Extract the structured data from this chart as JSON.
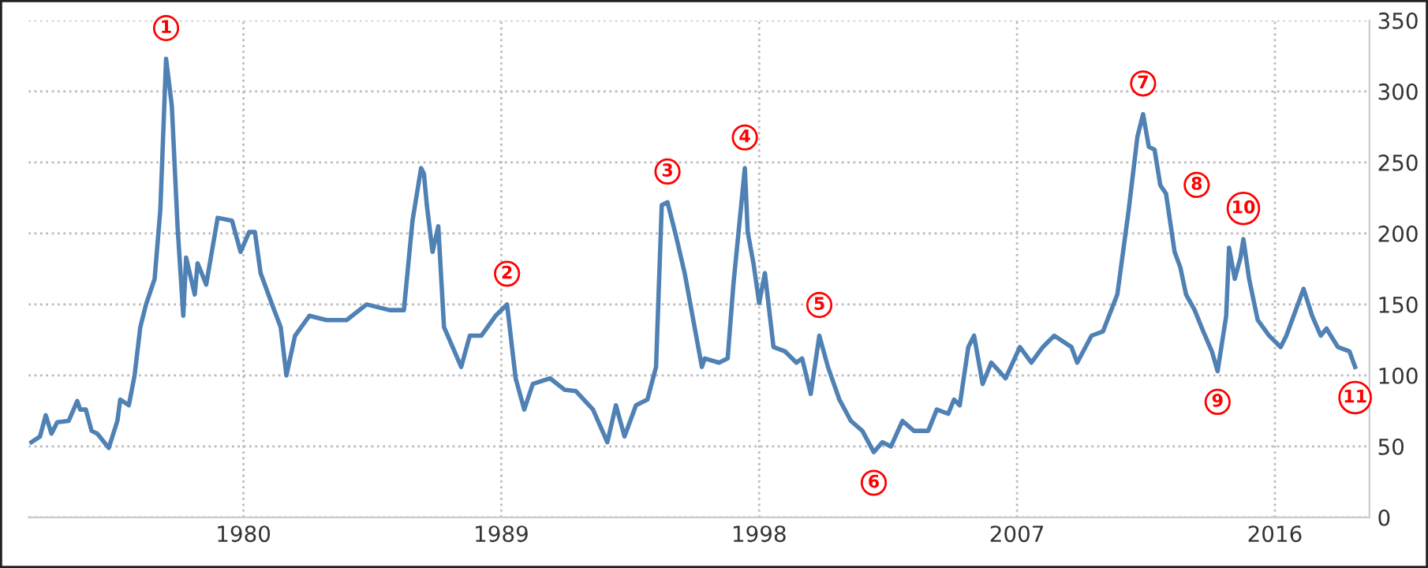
{
  "chart_data": {
    "type": "line",
    "xlim": [
      1972.5,
      2019.3
    ],
    "ylim": [
      0,
      350
    ],
    "xticks": [
      1980,
      1989,
      1998,
      2007,
      2016
    ],
    "yticks": [
      0,
      50,
      100,
      150,
      200,
      250,
      300,
      350
    ],
    "grid": true,
    "marker": "none",
    "line_style": "solid",
    "series": [
      {
        "color": "#4f81b4",
        "x": [
          1972.6,
          1972.9,
          1973.1,
          1973.3,
          1973.5,
          1973.9,
          1974.2,
          1974.3,
          1974.5,
          1974.7,
          1974.9,
          1975.3,
          1975.6,
          1975.7,
          1976.0,
          1976.2,
          1976.4,
          1976.6,
          1976.9,
          1977.1,
          1977.3,
          1977.5,
          1977.7,
          1977.9,
          1978.0,
          1978.3,
          1978.4,
          1978.7,
          1979.1,
          1979.6,
          1979.9,
          1980.2,
          1980.4,
          1980.6,
          1981.0,
          1981.3,
          1981.5,
          1981.8,
          1982.3,
          1982.9,
          1983.6,
          1984.3,
          1985.1,
          1985.6,
          1985.9,
          1986.2,
          1986.3,
          1986.4,
          1986.6,
          1986.8,
          1987.0,
          1987.3,
          1987.6,
          1987.9,
          1988.3,
          1988.8,
          1989.2,
          1989.5,
          1989.8,
          1990.1,
          1990.7,
          1991.2,
          1991.6,
          1992.2,
          1992.7,
          1993.0,
          1993.3,
          1993.7,
          1994.1,
          1994.4,
          1994.6,
          1994.8,
          1995.1,
          1995.4,
          1996.0,
          1996.1,
          1996.6,
          1996.9,
          1997.1,
          1997.5,
          1997.6,
          1997.8,
          1998.0,
          1998.2,
          1998.5,
          1998.9,
          1999.3,
          1999.5,
          1999.8,
          2000.1,
          2000.4,
          2000.8,
          2001.2,
          2001.6,
          2002.0,
          2002.3,
          2002.6,
          2003.0,
          2003.4,
          2003.9,
          2004.2,
          2004.6,
          2004.8,
          2005.0,
          2005.3,
          2005.5,
          2005.8,
          2006.1,
          2006.6,
          2007.1,
          2007.5,
          2007.9,
          2008.3,
          2008.9,
          2009.1,
          2009.6,
          2010.0,
          2010.5,
          2010.9,
          2011.2,
          2011.4,
          2011.6,
          2011.8,
          2012.0,
          2012.2,
          2012.5,
          2012.7,
          2012.9,
          2013.2,
          2013.5,
          2013.8,
          2014.0,
          2014.3,
          2014.4,
          2014.6,
          2014.8,
          2014.9,
          2015.1,
          2015.4,
          2015.8,
          2016.2,
          2016.4,
          2016.8,
          2017.0,
          2017.3,
          2017.6,
          2017.8,
          2018.2,
          2018.6,
          2018.8
        ],
        "values": [
          53,
          57,
          72,
          59,
          67,
          68,
          82,
          76,
          76,
          61,
          59,
          49,
          68,
          83,
          79,
          100,
          134,
          150,
          168,
          217,
          323,
          290,
          205,
          142,
          183,
          157,
          179,
          164,
          211,
          209,
          187,
          201,
          201,
          172,
          150,
          134,
          100,
          128,
          142,
          139,
          139,
          150,
          146,
          146,
          209,
          246,
          242,
          220,
          187,
          205,
          134,
          120,
          106,
          128,
          128,
          142,
          150,
          98,
          76,
          94,
          98,
          90,
          89,
          76,
          53,
          79,
          57,
          79,
          83,
          106,
          220,
          222,
          198,
          172,
          106,
          112,
          109,
          112,
          164,
          246,
          201,
          179,
          151,
          172,
          120,
          117,
          109,
          112,
          87,
          128,
          106,
          83,
          68,
          61,
          46,
          53,
          50,
          68,
          61,
          61,
          76,
          73,
          83,
          79,
          120,
          128,
          94,
          109,
          98,
          120,
          109,
          120,
          128,
          120,
          109,
          128,
          131,
          157,
          217,
          268,
          284,
          261,
          259,
          234,
          228,
          187,
          176,
          157,
          146,
          131,
          117,
          103,
          142,
          190,
          168,
          183,
          196,
          168,
          139,
          128,
          120,
          128,
          150,
          161,
          142,
          128,
          133,
          120,
          117,
          106
        ]
      }
    ],
    "annotations": [
      {
        "text": "1",
        "x": 1977.3,
        "y": 323
      },
      {
        "text": "2",
        "x": 1989.2,
        "y": 150
      },
      {
        "text": "3",
        "x": 1994.8,
        "y": 222
      },
      {
        "text": "4",
        "x": 1997.5,
        "y": 246
      },
      {
        "text": "5",
        "x": 2000.1,
        "y": 128
      },
      {
        "text": "6",
        "x": 2002.0,
        "y": 46
      },
      {
        "text": "7",
        "x": 2011.4,
        "y": 284
      },
      {
        "text": "8",
        "x": 2012.2,
        "y": 228
      },
      {
        "text": "9",
        "x": 2014.0,
        "y": 103
      },
      {
        "text": "10",
        "x": 2014.9,
        "y": 196
      },
      {
        "text": "11",
        "x": 2018.8,
        "y": 106
      }
    ]
  }
}
